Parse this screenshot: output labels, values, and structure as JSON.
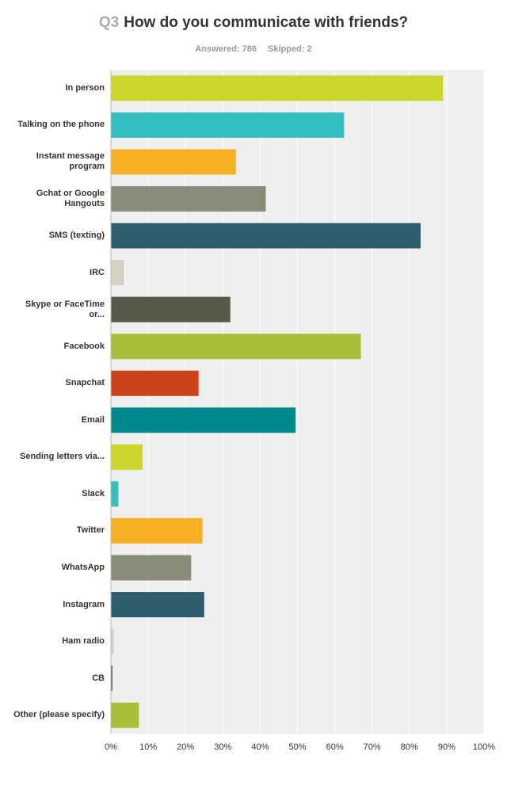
{
  "header": {
    "question_number": "Q3",
    "question_text": "How do you communicate with friends?",
    "answered": "Answered: 786",
    "skipped": "Skipped: 2"
  },
  "chart_data": {
    "type": "bar",
    "orientation": "horizontal",
    "xlim": [
      0,
      100
    ],
    "unit": "%",
    "grid": true,
    "tick_labels": [
      "0%",
      "10%",
      "20%",
      "30%",
      "40%",
      "50%",
      "60%",
      "70%",
      "80%",
      "90%",
      "100%"
    ],
    "categories": [
      "In person",
      "Talking on the phone",
      "Instant message program",
      "Gchat or Google Hangouts",
      "SMS (texting)",
      "IRC",
      "Skype or FaceTime or...",
      "Facebook",
      "Snapchat",
      "Email",
      "Sending letters via...",
      "Slack",
      "Twitter",
      "WhatsApp",
      "Instagram",
      "Ham radio",
      "CB",
      "Other (please specify)"
    ],
    "values": [
      89,
      62.5,
      33.5,
      41.5,
      83,
      3.5,
      32,
      67,
      23.5,
      49.5,
      8.5,
      2,
      24.5,
      21.5,
      25,
      0.8,
      0.4,
      7.5
    ],
    "colors": [
      "#ccd52a",
      "#33bfc1",
      "#f7b023",
      "#8a8b7b",
      "#2e5e6d",
      "#d3d0c4",
      "#58584a",
      "#a9bf3a",
      "#cc431b",
      "#008a8c",
      "#ccd52a",
      "#33bfc1",
      "#f7b023",
      "#8a8b7b",
      "#2e5e6d",
      "#d3d0c4",
      "#58584a",
      "#a9bf3a"
    ]
  }
}
